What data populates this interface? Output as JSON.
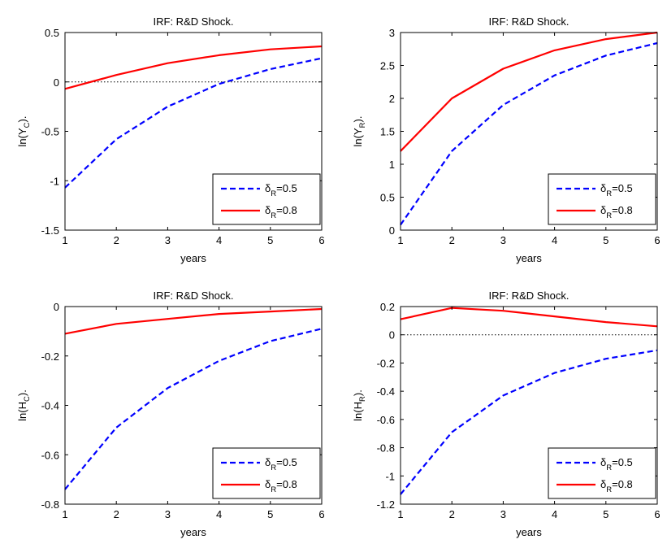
{
  "chart_data": [
    {
      "type": "line",
      "title": "IRF:  R&D Shock.",
      "xlabel": "years",
      "ylabel": {
        "pre": "ln(Y",
        "sub": "C",
        "post": ")."
      },
      "x": [
        1,
        2,
        3,
        4,
        5,
        6
      ],
      "xlim": [
        1,
        6
      ],
      "ylim": [
        -1.5,
        0.5
      ],
      "xticks": [
        "1",
        "2",
        "3",
        "4",
        "5",
        "6"
      ],
      "yticks": [
        -1.5,
        -1,
        -0.5,
        0,
        0.5
      ],
      "ytick_labels": [
        "-1.5",
        "-1",
        "-0.5",
        "0",
        "0.5"
      ],
      "zero_line": true,
      "legend_position": "bottom-right",
      "series": [
        {
          "name": "δR=0.5",
          "name_base": "δ",
          "name_sub": "R",
          "name_rest": "=0.5",
          "color": "#0000ff",
          "style": "dashed",
          "values": [
            -1.07,
            -0.58,
            -0.25,
            -0.02,
            0.13,
            0.24
          ]
        },
        {
          "name": "δR=0.8",
          "name_base": "δ",
          "name_sub": "R",
          "name_rest": "=0.8",
          "color": "#ff0000",
          "style": "solid",
          "values": [
            -0.07,
            0.07,
            0.19,
            0.27,
            0.33,
            0.36
          ]
        }
      ]
    },
    {
      "type": "line",
      "title": "IRF:  R&D Shock.",
      "xlabel": "years",
      "ylabel": {
        "pre": "ln(Y",
        "sub": "R",
        "post": ")."
      },
      "x": [
        1,
        2,
        3,
        4,
        5,
        6
      ],
      "xlim": [
        1,
        6
      ],
      "ylim": [
        0,
        3
      ],
      "xticks": [
        "1",
        "2",
        "3",
        "4",
        "5",
        "6"
      ],
      "yticks": [
        0,
        0.5,
        1,
        1.5,
        2,
        2.5,
        3
      ],
      "ytick_labels": [
        "0",
        "0.5",
        "1",
        "1.5",
        "2",
        "2.5",
        "3"
      ],
      "zero_line": true,
      "legend_position": "bottom-right",
      "series": [
        {
          "name": "δR=0.5",
          "name_base": "δ",
          "name_sub": "R",
          "name_rest": "=0.5",
          "color": "#0000ff",
          "style": "dashed",
          "values": [
            0.08,
            1.2,
            1.9,
            2.35,
            2.65,
            2.84
          ]
        },
        {
          "name": "δR=0.8",
          "name_base": "δ",
          "name_sub": "R",
          "name_rest": "=0.8",
          "color": "#ff0000",
          "style": "solid",
          "values": [
            1.2,
            2.0,
            2.45,
            2.73,
            2.9,
            3.0
          ]
        }
      ]
    },
    {
      "type": "line",
      "title": "IRF:  R&D Shock.",
      "xlabel": "years",
      "ylabel": {
        "pre": "ln(H",
        "sub": "C",
        "post": ")."
      },
      "x": [
        1,
        2,
        3,
        4,
        5,
        6
      ],
      "xlim": [
        1,
        6
      ],
      "ylim": [
        -0.8,
        0
      ],
      "xticks": [
        "1",
        "2",
        "3",
        "4",
        "5",
        "6"
      ],
      "yticks": [
        -0.8,
        -0.6,
        -0.4,
        -0.2,
        0
      ],
      "ytick_labels": [
        "-0.8",
        "-0.6",
        "-0.4",
        "-0.2",
        "0"
      ],
      "zero_line": true,
      "legend_position": "bottom-right",
      "series": [
        {
          "name": "δR=0.5",
          "name_base": "δ",
          "name_sub": "R",
          "name_rest": "=0.5",
          "color": "#0000ff",
          "style": "dashed",
          "values": [
            -0.74,
            -0.49,
            -0.33,
            -0.22,
            -0.14,
            -0.09
          ]
        },
        {
          "name": "δR=0.8",
          "name_base": "δ",
          "name_sub": "R",
          "name_rest": "=0.8",
          "color": "#ff0000",
          "style": "solid",
          "values": [
            -0.11,
            -0.07,
            -0.05,
            -0.03,
            -0.02,
            -0.01
          ]
        }
      ]
    },
    {
      "type": "line",
      "title": "IRF:  R&D Shock.",
      "xlabel": "years",
      "ylabel": {
        "pre": "ln(H",
        "sub": "R",
        "post": ")."
      },
      "x": [
        1,
        2,
        3,
        4,
        5,
        6
      ],
      "xlim": [
        1,
        6
      ],
      "ylim": [
        -1.2,
        0.2
      ],
      "xticks": [
        "1",
        "2",
        "3",
        "4",
        "5",
        "6"
      ],
      "yticks": [
        -1.2,
        -1,
        -0.8,
        -0.6,
        -0.4,
        -0.2,
        0,
        0.2
      ],
      "ytick_labels": [
        "-1.2",
        "-1",
        "-0.8",
        "-0.6",
        "-0.4",
        "-0.2",
        "0",
        "0.2"
      ],
      "zero_line": true,
      "legend_position": "bottom-right",
      "series": [
        {
          "name": "δR=0.5",
          "name_base": "δ",
          "name_sub": "R",
          "name_rest": "=0.5",
          "color": "#0000ff",
          "style": "dashed",
          "values": [
            -1.13,
            -0.69,
            -0.43,
            -0.27,
            -0.17,
            -0.11
          ]
        },
        {
          "name": "δR=0.8",
          "name_base": "δ",
          "name_sub": "R",
          "name_rest": "=0.8",
          "color": "#ff0000",
          "style": "solid",
          "values": [
            0.11,
            0.19,
            0.17,
            0.13,
            0.09,
            0.06
          ]
        }
      ]
    }
  ]
}
